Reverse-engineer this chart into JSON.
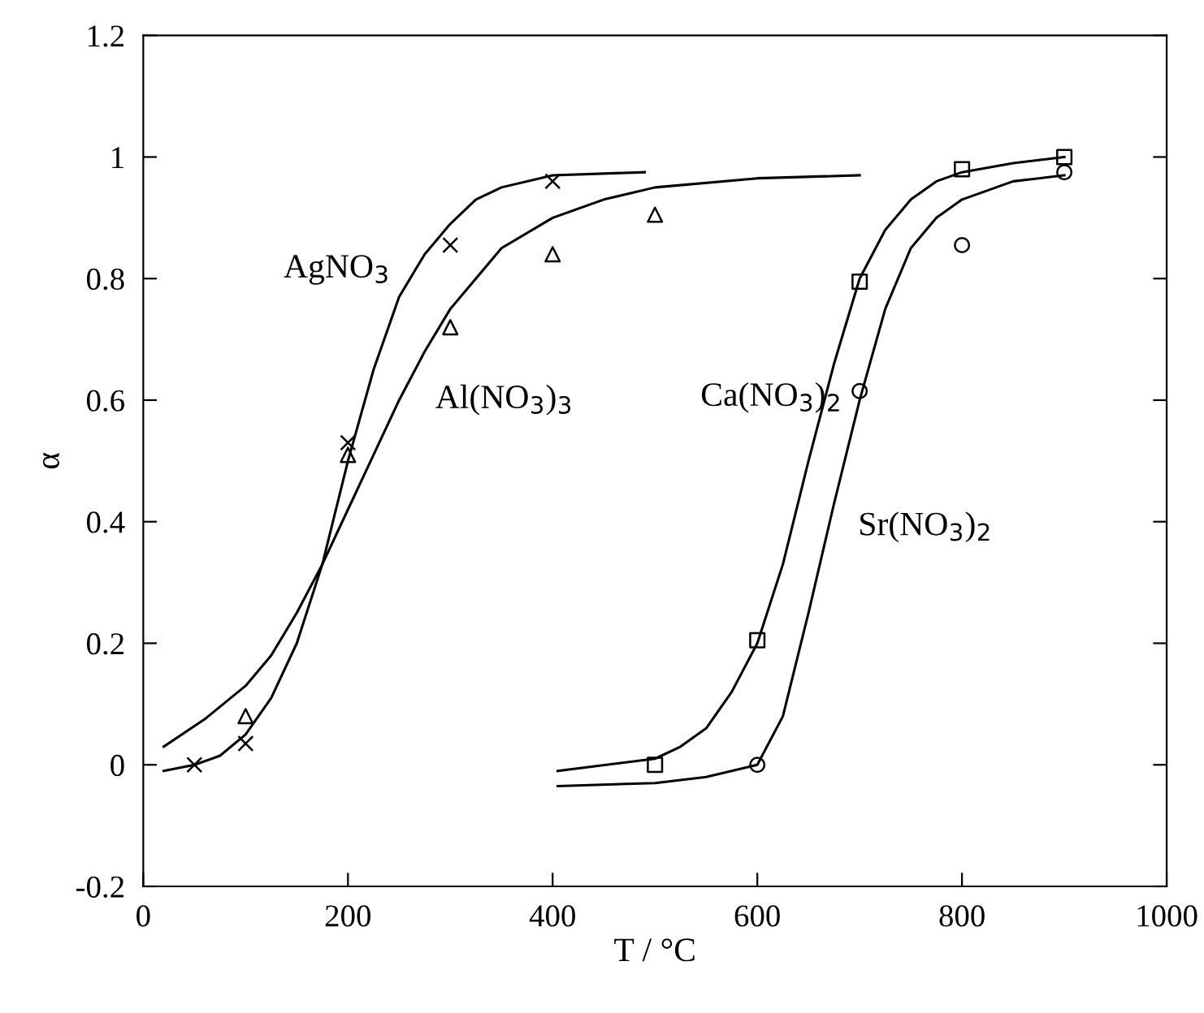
{
  "chart_data": {
    "type": "scatter",
    "xlabel": "T / °C",
    "ylabel": "α",
    "xlim": [
      0,
      1000
    ],
    "xticks": [
      0,
      200,
      400,
      600,
      800,
      1000
    ],
    "ylim": [
      -0.2,
      1.2
    ],
    "yticks": [
      {
        "value": -0.2,
        "label": "-0.2"
      },
      0,
      0.2,
      0.4,
      0.6,
      0.8,
      1,
      1.2
    ],
    "grid": false,
    "legend": false,
    "series": [
      {
        "marker": "cross",
        "color": "#000000",
        "x": [
          50,
          100,
          200,
          300,
          400
        ],
        "values": [
          0,
          0.035,
          0.53,
          0.855,
          0.96
        ]
      },
      {
        "marker": "triangle",
        "color": "#000000",
        "x": [
          100,
          200,
          300,
          400,
          500
        ],
        "values": [
          0.08,
          0.51,
          0.72,
          0.84,
          0.905
        ]
      },
      {
        "marker": "square",
        "color": "#000000",
        "x": [
          500,
          600,
          700,
          800,
          900
        ],
        "values": [
          0,
          0.205,
          0.795,
          0.98,
          1.0
        ]
      },
      {
        "marker": "circle",
        "color": "#000000",
        "x": [
          600,
          700,
          800,
          900
        ],
        "values": [
          0,
          0.615,
          0.855,
          0.975
        ]
      },
      {
        "type": "line",
        "name": "AgNO$_{3}$",
        "color": "#000000",
        "line_style": "solid",
        "marker": "none",
        "x": [
          20,
          50,
          75,
          100,
          125,
          150,
          175,
          200,
          225,
          250,
          275,
          300,
          325,
          350,
          400,
          490
        ],
        "values": [
          -0.01,
          0.0,
          0.015,
          0.05,
          0.11,
          0.2,
          0.33,
          0.5,
          0.65,
          0.77,
          0.84,
          0.89,
          0.93,
          0.95,
          0.97,
          0.975
        ]
      },
      {
        "type": "line",
        "name": "Al(NO$_{3}$)$_{3}$",
        "color": "#000000",
        "line_style": "solid",
        "marker": "none",
        "x": [
          20,
          60,
          100,
          125,
          150,
          175,
          200,
          225,
          250,
          275,
          300,
          325,
          350,
          400,
          450,
          500,
          600,
          700
        ],
        "values": [
          0.03,
          0.075,
          0.13,
          0.18,
          0.25,
          0.33,
          0.42,
          0.51,
          0.6,
          0.68,
          0.75,
          0.8,
          0.85,
          0.9,
          0.93,
          0.95,
          0.965,
          0.97
        ]
      },
      {
        "type": "line",
        "name": "Ca(NO$_{3}$)$_{2}$",
        "color": "#000000",
        "line_style": "solid",
        "marker": "none",
        "x": [
          405,
          500,
          525,
          550,
          575,
          600,
          625,
          650,
          675,
          700,
          725,
          750,
          775,
          800,
          850,
          900
        ],
        "values": [
          -0.01,
          0.01,
          0.03,
          0.06,
          0.12,
          0.2,
          0.33,
          0.5,
          0.66,
          0.8,
          0.88,
          0.93,
          0.96,
          0.975,
          0.99,
          1.0
        ]
      },
      {
        "type": "line",
        "name": "Sr(NO$_{3}$)$_{2}$",
        "color": "#000000",
        "line_style": "solid",
        "marker": "none",
        "x": [
          405,
          500,
          550,
          575,
          600,
          625,
          650,
          675,
          700,
          725,
          750,
          775,
          800,
          850,
          900
        ],
        "values": [
          -0.035,
          -0.03,
          -0.02,
          -0.01,
          0.0,
          0.08,
          0.25,
          0.43,
          0.6,
          0.75,
          0.85,
          0.9,
          0.93,
          0.96,
          0.97
        ]
      }
    ]
  }
}
